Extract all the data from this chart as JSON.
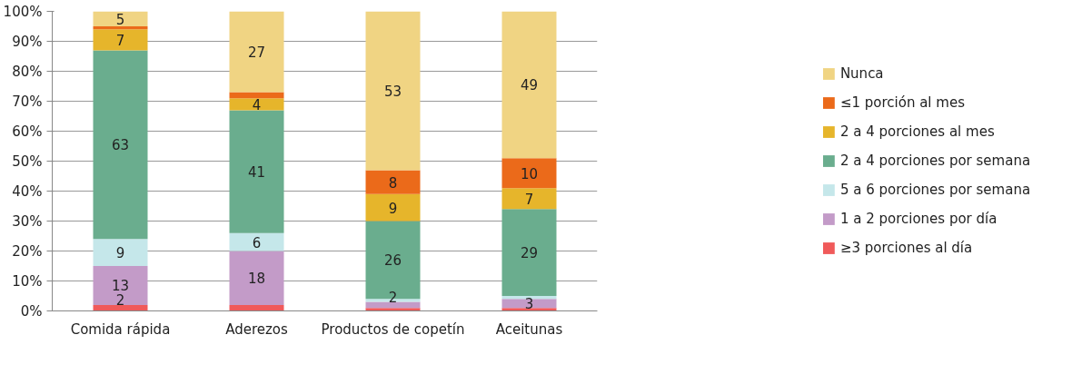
{
  "chart_data": {
    "type": "bar",
    "stacked": true,
    "categories": [
      "Comida rápida",
      "Aderezos",
      "Productos de copetín",
      "Aceitunas"
    ],
    "ylim": [
      0,
      100
    ],
    "yticks": [
      {
        "value": 0,
        "label": "0%"
      },
      {
        "value": 10,
        "label": "10%"
      },
      {
        "value": 20,
        "label": "20%"
      },
      {
        "value": 30,
        "label": "30%"
      },
      {
        "value": 40,
        "label": "40%"
      },
      {
        "value": 50,
        "label": "50%"
      },
      {
        "value": 60,
        "label": "60%"
      },
      {
        "value": 70,
        "label": "70%"
      },
      {
        "value": 80,
        "label": "80%"
      },
      {
        "value": 90,
        "label": "90%"
      },
      {
        "value": 100,
        "label": "100%"
      }
    ],
    "grid": "y",
    "legend": "right",
    "series": [
      {
        "name": "≥3 porciones al día",
        "color": "#f05a5a",
        "values": [
          2,
          2,
          1,
          1
        ],
        "value_labels": [
          "2",
          null,
          null,
          null
        ]
      },
      {
        "name": "1 a 2 porciones por día",
        "color": "#c39bc8",
        "values": [
          13,
          18,
          2,
          3
        ],
        "value_labels": [
          "13",
          "18",
          "2",
          "3"
        ]
      },
      {
        "name": "5 a 6 porciones por semana",
        "color": "#c5e7ea",
        "values": [
          9,
          6,
          1,
          1
        ],
        "value_labels": [
          "9",
          "6",
          null,
          null
        ]
      },
      {
        "name": "2 a 4 porciones por semana",
        "color": "#6aad8e",
        "values": [
          63,
          41,
          26,
          29
        ],
        "value_labels": [
          "63",
          "41",
          "26",
          "29"
        ]
      },
      {
        "name": "2 a 4 porciones al mes",
        "color": "#e6b52b",
        "values": [
          7,
          4,
          9,
          7
        ],
        "value_labels": [
          "7",
          "4",
          "9",
          "7"
        ]
      },
      {
        "name": "≤1 porción al mes",
        "color": "#eb6a1a",
        "values": [
          1,
          2,
          8,
          10
        ],
        "value_labels": [
          null,
          null,
          "8",
          "10"
        ]
      },
      {
        "name": "Nunca",
        "color": "#f0d483",
        "values": [
          5,
          27,
          53,
          49
        ],
        "value_labels": [
          "5",
          "27",
          "53",
          "49"
        ]
      }
    ]
  }
}
